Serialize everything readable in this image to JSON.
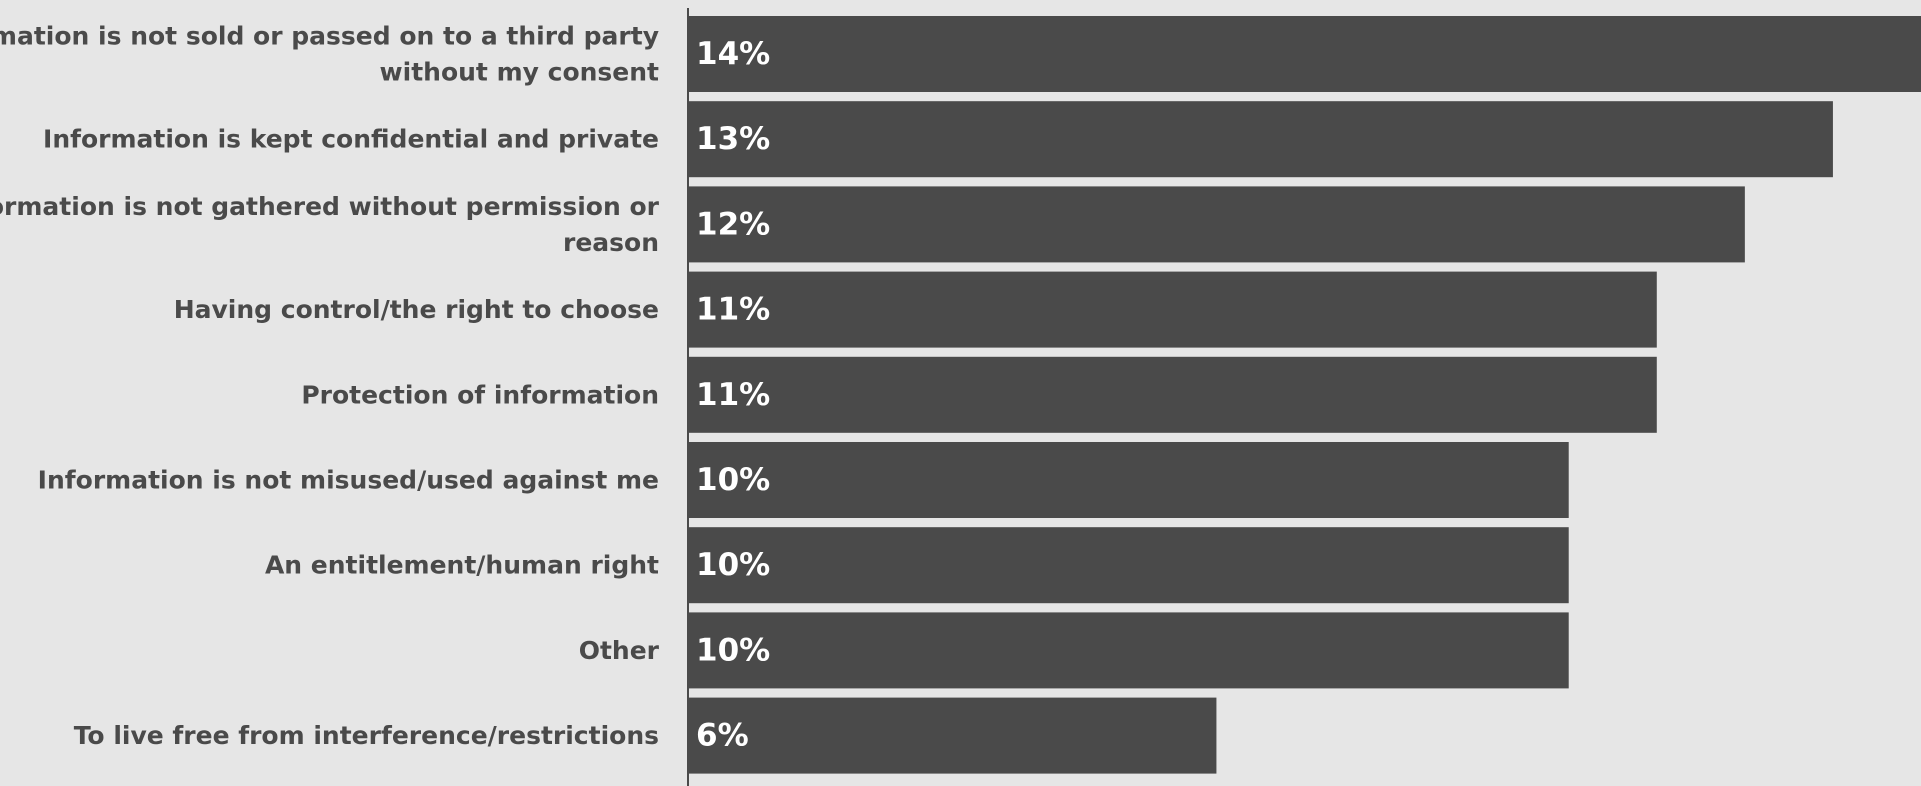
{
  "chart_data": {
    "type": "bar",
    "orientation": "horizontal",
    "title": "",
    "xlabel": "",
    "ylabel": "",
    "categories": [
      "Information is not sold or passed on to a third party without my consent",
      "Information is kept confidential and private",
      "Information is not gathered without permission or reason",
      "Having control/the right to choose",
      "Protection of information",
      "Information is not misused/used against me",
      "An entitlement/human right",
      "Other",
      "To live free from interference/restrictions"
    ],
    "category_lines": [
      [
        "Information is not sold or passed on to a third party",
        "without my consent"
      ],
      [
        "Information is kept confidential and private"
      ],
      [
        "Information is not gathered without permission or",
        "reason"
      ],
      [
        "Having control/the right to choose"
      ],
      [
        "Protection of information"
      ],
      [
        "Information is not misused/used against me"
      ],
      [
        "An entitlement/human right"
      ],
      [
        "Other"
      ],
      [
        "To live free from interference/restrictions"
      ]
    ],
    "values": [
      14,
      13,
      12,
      11,
      11,
      10,
      10,
      10,
      6
    ],
    "value_labels": [
      "14%",
      "13%",
      "12%",
      "11%",
      "11%",
      "10%",
      "10%",
      "10%",
      "6%"
    ],
    "unit": "%",
    "xlim": [
      0,
      14
    ],
    "grid": false,
    "legend": "none",
    "colors": {
      "background": "#e6e6e6",
      "bar": "#4a4a4a",
      "axis": "#4a4a4a",
      "category_text": "#4a4a4a",
      "value_text": "#ffffff"
    }
  }
}
